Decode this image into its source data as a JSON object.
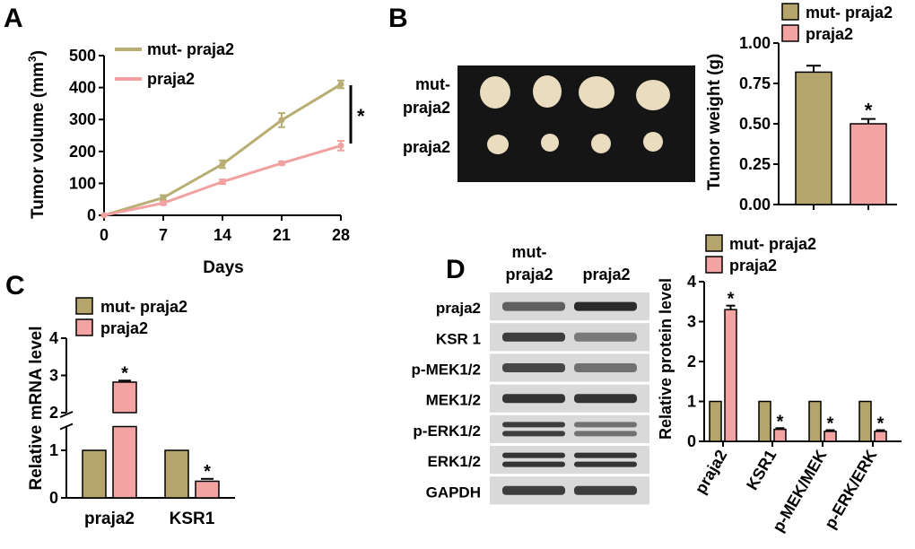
{
  "colors": {
    "mut": "#b5a46b",
    "wt": "#f4a3a3",
    "mut_line": "#b8ad72",
    "wt_line": "#f2a1a1",
    "photo_bg": "#151515",
    "tumor": "#e9dcbf",
    "blot_bg": "#d9d9d9",
    "band": "#2b2b2b"
  },
  "panels": {
    "A": "A",
    "B": "B",
    "C": "C",
    "D": "D"
  },
  "star": "*",
  "chart_data": [
    {
      "type": "line",
      "panel": "A",
      "xlabel": "Days",
      "ylabel": "Tumor volume (mm",
      "ylabel_sup": "3",
      "ylabel_close": ")",
      "x": [
        0,
        7,
        14,
        21,
        28
      ],
      "xticks": [
        "0",
        "7",
        "14",
        "21",
        "28"
      ],
      "yticks": [
        "0",
        "100",
        "200",
        "300",
        "400",
        "500"
      ],
      "ylim": [
        0,
        500
      ],
      "xlim": [
        0,
        28
      ],
      "legend": "top-left",
      "series": [
        {
          "name": "mut- praja2",
          "values": [
            0,
            55,
            160,
            298,
            410
          ],
          "err": [
            0,
            8,
            12,
            22,
            12
          ]
        },
        {
          "name": "praja2",
          "values": [
            0,
            38,
            105,
            163,
            218
          ],
          "err": [
            0,
            5,
            7,
            5,
            15
          ]
        }
      ],
      "annotation": "*"
    },
    {
      "type": "bar",
      "panel": "B",
      "ylabel": "Tumor weight (g)",
      "yticks": [
        "0.00",
        "0.25",
        "0.50",
        "0.75",
        "1.00"
      ],
      "ylim": [
        0,
        1.0
      ],
      "legend": "top",
      "series": [
        {
          "name": "mut- praja2",
          "values": [
            0.82
          ],
          "err": [
            0.04
          ]
        },
        {
          "name": "praja2",
          "values": [
            0.5
          ],
          "err": [
            0.03
          ]
        }
      ],
      "photo_row_labels": [
        "mut-\npraja2",
        "praja2"
      ]
    },
    {
      "type": "bar",
      "panel": "C",
      "ylabel": "Relative mRNA level",
      "categories": [
        "praja2",
        "KSR1"
      ],
      "yticks": [
        "0",
        "1",
        "2",
        "3",
        "4"
      ],
      "ylim": [
        0,
        4
      ],
      "axis_break": [
        1.5,
        2.0
      ],
      "legend": "top-left",
      "series": [
        {
          "name": "mut- praja2",
          "values": [
            1.0,
            1.0
          ]
        },
        {
          "name": "praja2",
          "values": [
            2.82,
            0.35
          ],
          "err": [
            0.04,
            0.05
          ]
        }
      ]
    },
    {
      "type": "bar",
      "panel": "D",
      "ylabel": "Relative protein level",
      "categories": [
        "praja2",
        "KSR1",
        "p-MEK/MEK",
        "p-ERK/ERK"
      ],
      "yticks": [
        "0",
        "1",
        "2",
        "3",
        "4"
      ],
      "ylim": [
        0,
        4
      ],
      "legend": "top-left",
      "series": [
        {
          "name": "mut- praja2",
          "values": [
            1.0,
            1.0,
            1.0,
            1.0
          ]
        },
        {
          "name": "praja2",
          "values": [
            3.3,
            0.3,
            0.25,
            0.25
          ],
          "err": [
            0.1,
            0.03,
            0.03,
            0.03
          ]
        }
      ]
    }
  ],
  "blot": {
    "column_labels": [
      "mut-\npraja2",
      "praja2"
    ],
    "rows": [
      {
        "label": "praja2",
        "left": 0.7,
        "right": 1.0,
        "double": false
      },
      {
        "label": "KSR 1",
        "left": 0.9,
        "right": 0.55,
        "double": false
      },
      {
        "label": "p-MEK1/2",
        "left": 0.85,
        "right": 0.6,
        "double": false
      },
      {
        "label": "MEK1/2",
        "left": 0.95,
        "right": 0.95,
        "double": false
      },
      {
        "label": "p-ERK1/2",
        "left": 0.9,
        "right": 0.6,
        "double": true
      },
      {
        "label": "ERK1/2",
        "left": 0.95,
        "right": 0.95,
        "double": true
      },
      {
        "label": "GAPDH",
        "left": 0.9,
        "right": 0.9,
        "double": false
      }
    ]
  }
}
